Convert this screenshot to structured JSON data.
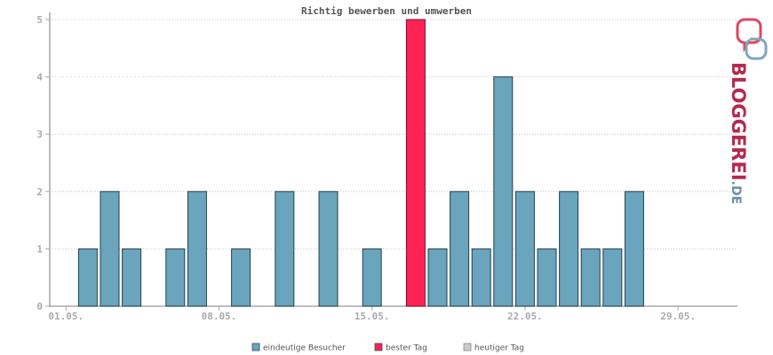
{
  "chart_data": {
    "type": "bar",
    "title": "Richtig bewerben und umwerben",
    "xlabel": "",
    "ylabel": "",
    "ylim": [
      0,
      5
    ],
    "yticks": [
      "0",
      "1",
      "2",
      "3",
      "4",
      "5"
    ],
    "xtick_labels": [
      "01.05.",
      "08.05.",
      "15.05.",
      "22.05.",
      "29.05."
    ],
    "xtick_days": [
      1,
      8,
      15,
      22,
      29
    ],
    "days": [
      1,
      2,
      3,
      4,
      5,
      6,
      7,
      8,
      9,
      10,
      11,
      12,
      13,
      14,
      15,
      16,
      17,
      18,
      19,
      20,
      21,
      22,
      23,
      24,
      25,
      26,
      27,
      28,
      29,
      30,
      31
    ],
    "values": [
      0,
      1,
      2,
      1,
      0,
      1,
      2,
      0,
      1,
      0,
      2,
      0,
      2,
      0,
      1,
      0,
      5,
      1,
      2,
      1,
      4,
      2,
      1,
      2,
      1,
      1,
      2,
      0,
      0,
      0,
      0
    ],
    "best_day": 17,
    "grid": "horizontal-dotted",
    "legend_position": "bottom-center",
    "legend": [
      {
        "label": "eindeutige Besucher",
        "color": "#6aa4bd"
      },
      {
        "label": "bester Tag",
        "color": "#ff2255"
      },
      {
        "label": "heutiger Tag",
        "color": "#cccccc"
      }
    ]
  },
  "logo": {
    "main": "BLOGGEREI",
    "suffix": ".DE",
    "color_main": "#b5294e",
    "color_suffix": "#6a8fa6"
  }
}
